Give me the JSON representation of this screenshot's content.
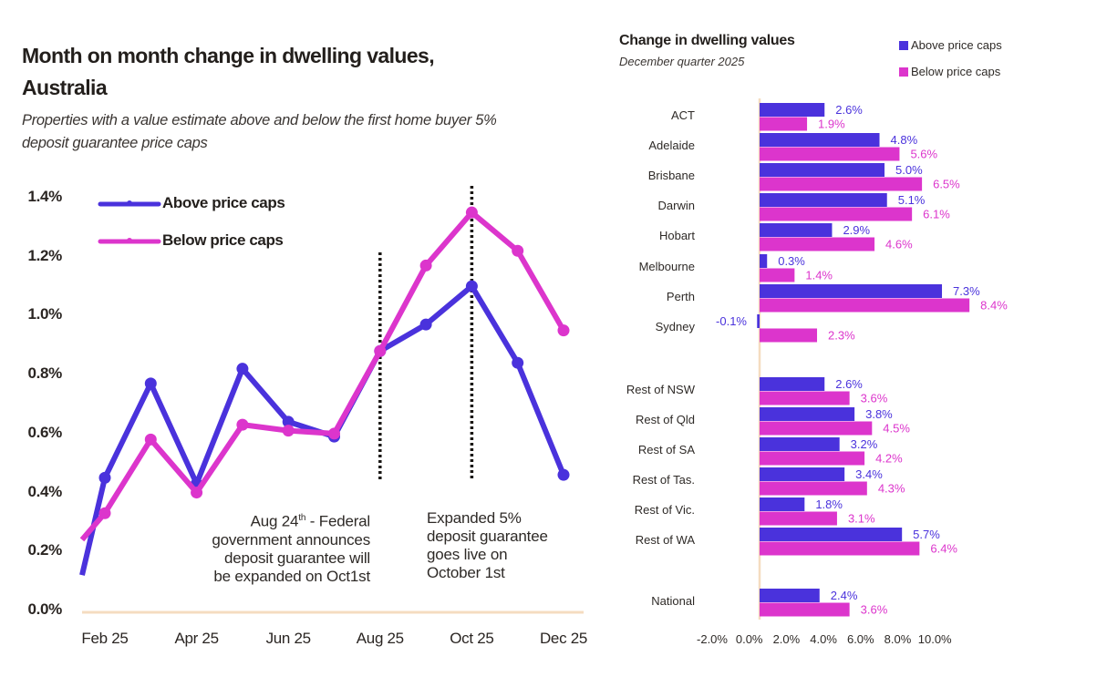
{
  "colors": {
    "above": "#4a32dc",
    "below": "#dc35cc",
    "axis": "#f5dcc0",
    "annotation_line": "#1a1714"
  },
  "chart_data": [
    {
      "type": "line",
      "title": "Month on month change in dwelling values, Australia",
      "subtitle": "Properties with a value estimate above and below the first home buyer 5% deposit guarantee price caps",
      "x": [
        "Jan 25",
        "Feb 25",
        "Mar 25",
        "Apr 25",
        "May 25",
        "Jun 25",
        "Jul 25",
        "Aug 25",
        "Sep 25",
        "Oct 25",
        "Nov 25",
        "Dec 25"
      ],
      "xtick_labels": [
        "Feb 25",
        "Apr 25",
        "Jun 25",
        "Aug 25",
        "Oct 25",
        "Dec 25"
      ],
      "ytick_labels": [
        "0.0%",
        "0.2%",
        "0.4%",
        "0.6%",
        "0.8%",
        "1.0%",
        "1.2%",
        "1.4%"
      ],
      "ylim": [
        0,
        1.4
      ],
      "yunit": "%",
      "series": [
        {
          "name": "Above price caps",
          "values": [
            0.12,
            0.45,
            0.77,
            0.43,
            0.82,
            0.64,
            0.59,
            0.88,
            0.97,
            1.1,
            0.84,
            0.46
          ]
        },
        {
          "name": "Below price caps",
          "values": [
            0.24,
            0.33,
            0.58,
            0.4,
            0.63,
            0.61,
            0.6,
            0.88,
            1.17,
            1.35,
            1.22,
            0.95
          ]
        }
      ],
      "legend": [
        "Above price caps",
        "Below price caps"
      ],
      "legend_position": "top-left",
      "annotations": [
        {
          "at": "Aug 25",
          "lines": [
            "Aug 24th - Federal",
            "government announces",
            "deposit guarantee will",
            "be expanded on Oct1st"
          ],
          "superscript": "th"
        },
        {
          "at": "Oct 25",
          "lines": [
            "Expanded 5%",
            "deposit guarantee",
            "goes live on",
            "October 1st"
          ]
        }
      ]
    },
    {
      "type": "bar",
      "orientation": "horizontal",
      "title": "Change in dwelling values",
      "subtitle": "December quarter 2025",
      "categories": [
        "ACT",
        "Adelaide",
        "Brisbane",
        "Darwin",
        "Hobart",
        "Melbourne",
        "Perth",
        "Sydney",
        "Rest of NSW",
        "Rest of Qld",
        "Rest of SA",
        "Rest of Tas.",
        "Rest of Vic.",
        "Rest of WA",
        "National"
      ],
      "series": [
        {
          "name": "Above price caps",
          "values": [
            2.6,
            4.8,
            5.0,
            5.1,
            2.9,
            0.3,
            7.3,
            -0.1,
            2.6,
            3.8,
            3.2,
            3.4,
            1.8,
            5.7,
            2.4
          ],
          "labels": [
            "2.6%",
            "4.8%",
            "5.0%",
            "5.1%",
            "2.9%",
            "0.3%",
            "7.3%",
            "-0.1%",
            "2.6%",
            "3.8%",
            "3.2%",
            "3.4%",
            "1.8%",
            "5.7%",
            "2.4%"
          ]
        },
        {
          "name": "Below price caps",
          "values": [
            1.9,
            5.6,
            6.5,
            6.1,
            4.6,
            1.4,
            8.4,
            2.3,
            3.6,
            4.5,
            4.2,
            4.3,
            3.1,
            6.4,
            3.6
          ],
          "labels": [
            "1.9%",
            "5.6%",
            "6.5%",
            "6.1%",
            "4.6%",
            "1.4%",
            "8.4%",
            "2.3%",
            "3.6%",
            "4.5%",
            "4.2%",
            "4.3%",
            "3.1%",
            "6.4%",
            "3.6%"
          ]
        }
      ],
      "xtick_labels": [
        "-2.0%",
        "0.0%",
        "2.0%",
        "4.0%",
        "6.0%",
        "8.0%",
        "10.0%"
      ],
      "xlim": [
        -2,
        10
      ],
      "legend": [
        "Above price caps",
        "Below price caps"
      ],
      "legend_position": "top-right"
    }
  ]
}
